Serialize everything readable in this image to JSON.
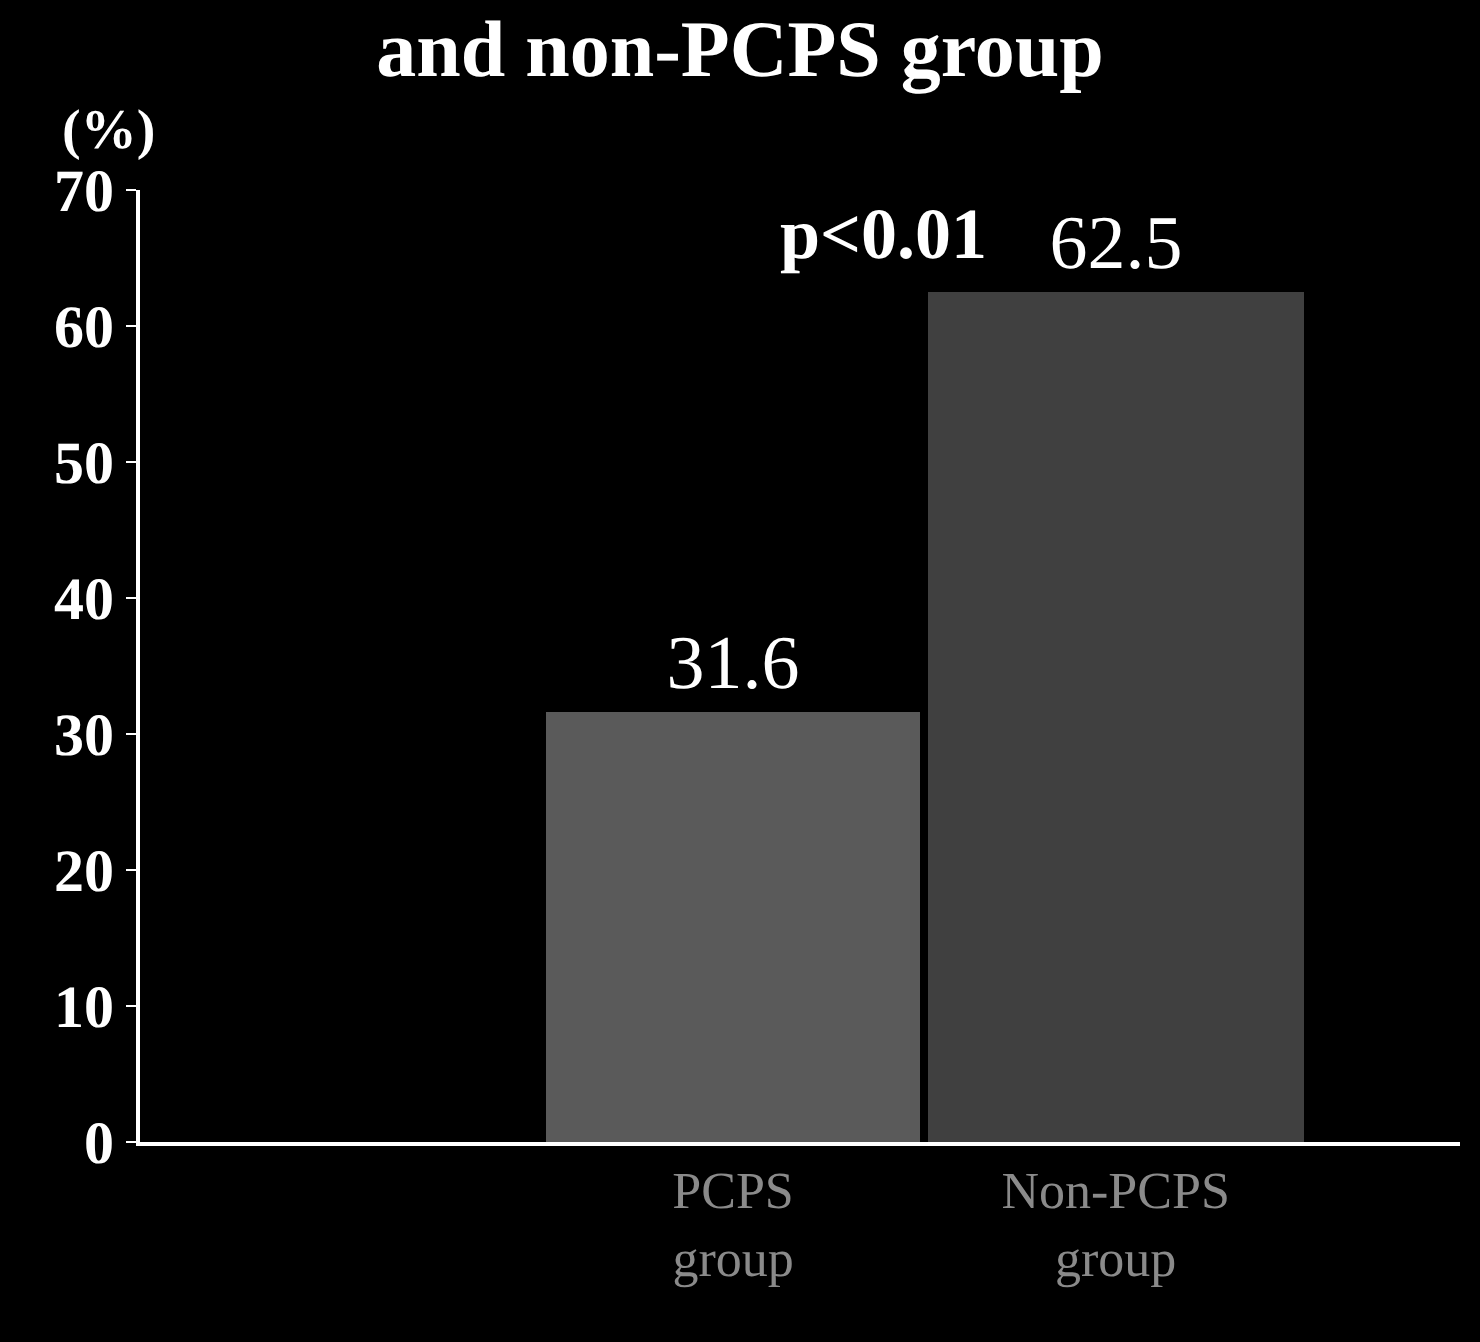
{
  "chart_data": {
    "type": "bar",
    "title": "and non-PCPS group",
    "ylabel": "(%)",
    "categories": [
      "PCPS\ngroup",
      "Non-PCPS\ngroup"
    ],
    "values": [
      31.6,
      62.5
    ],
    "colors": [
      "#5a5a5a",
      "#404040"
    ],
    "data_labels": true,
    "ylim": [
      0,
      70
    ],
    "yticks": [
      0,
      10,
      20,
      30,
      40,
      50,
      60,
      70
    ],
    "annotations": [
      "p<0.01"
    ],
    "grid": false,
    "legend": false
  }
}
